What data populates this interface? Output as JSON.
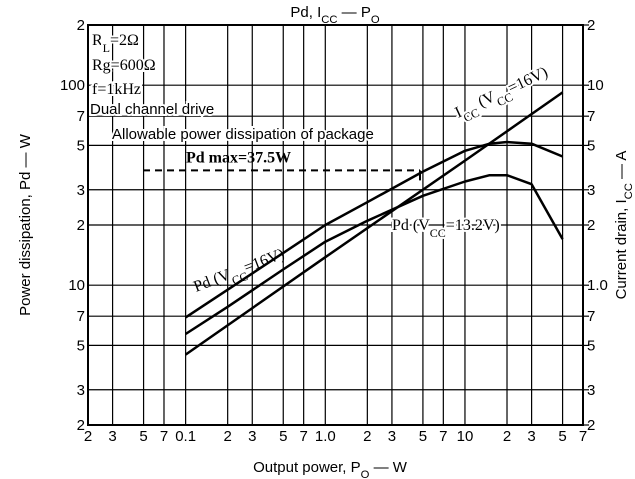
{
  "chart_data": {
    "type": "line",
    "title": [
      "Pd, I",
      "CC",
      " — P",
      "O"
    ],
    "x_label": [
      "Output power, P",
      "O",
      " — W"
    ],
    "y_label": "Power dissipation, Pd — W",
    "y2_label": [
      "Current drain, I",
      "CC",
      " — A"
    ],
    "log_x": true,
    "log_y": true,
    "grid": true,
    "xlim": [
      0.02,
      70
    ],
    "xticks": [
      {
        "value": 0.02,
        "label": "2"
      },
      {
        "value": 0.03,
        "label": "3"
      },
      {
        "value": 0.05,
        "label": "5"
      },
      {
        "value": 0.07,
        "label": "7"
      },
      0.1,
      {
        "value": 0.2,
        "label": "2"
      },
      {
        "value": 0.3,
        "label": "3"
      },
      {
        "value": 0.5,
        "label": "5"
      },
      {
        "value": 0.7,
        "label": "7"
      },
      {
        "value": 1,
        "label": "1.0"
      },
      2,
      3,
      5,
      7,
      10,
      {
        "value": 20,
        "label": "2"
      },
      {
        "value": 30,
        "label": "3"
      },
      {
        "value": 50,
        "label": "5"
      },
      {
        "value": 70,
        "label": "7"
      }
    ],
    "ylim": [
      2,
      200
    ],
    "yticks": [
      2,
      3,
      5,
      7,
      10,
      {
        "value": 20,
        "label": "2"
      },
      {
        "value": 30,
        "label": "3"
      },
      {
        "value": 50,
        "label": "5"
      },
      {
        "value": 70,
        "label": "7"
      },
      100,
      {
        "value": 200,
        "label": "2"
      }
    ],
    "y2lim": [
      0.2,
      20
    ],
    "y2ticks": [
      {
        "value": 0.2,
        "label": "2"
      },
      {
        "value": 0.3,
        "label": "3"
      },
      {
        "value": 0.5,
        "label": "5"
      },
      {
        "value": 0.7,
        "label": "7"
      },
      {
        "value": 1,
        "label": "1.0"
      },
      2,
      3,
      5,
      7,
      10,
      {
        "value": 20,
        "label": "2"
      }
    ],
    "series": [
      {
        "name": [
          "Pd (V",
          "CC",
          "=16V)"
        ],
        "color": "#000000",
        "x": [
          0.1,
          0.2,
          0.5,
          1,
          2,
          5,
          10,
          15,
          20,
          30,
          50
        ],
        "values": [
          6.9,
          9.5,
          14.5,
          20,
          26,
          37,
          47,
          51,
          52,
          51,
          44
        ]
      },
      {
        "name": [
          "Pd (V",
          "CC",
          "=13.2V)"
        ],
        "color": "#000000",
        "x": [
          0.1,
          0.2,
          0.5,
          1,
          2,
          5,
          10,
          15,
          20,
          30,
          50
        ],
        "values": [
          5.7,
          7.8,
          12,
          16.5,
          21,
          28,
          33,
          35.5,
          35.5,
          32,
          17
        ]
      },
      {
        "name": [
          "I",
          "CC",
          " (V",
          "CC",
          "=16V)"
        ],
        "color": "#000000",
        "axis": "y2",
        "x": [
          0.1,
          1,
          10,
          50
        ],
        "values": [
          0.45,
          1.38,
          4.2,
          9.2
        ]
      }
    ],
    "annotations": [
      [
        "R",
        "L",
        "=2Ω"
      ],
      [
        "Rg=600Ω"
      ],
      [
        "f=1kHz"
      ],
      [
        "Dual channel drive"
      ],
      [
        "Allowable power dissipation of package"
      ]
    ],
    "pd_max": {
      "label": "Pd max=37.5W",
      "value": 37.5
    }
  }
}
